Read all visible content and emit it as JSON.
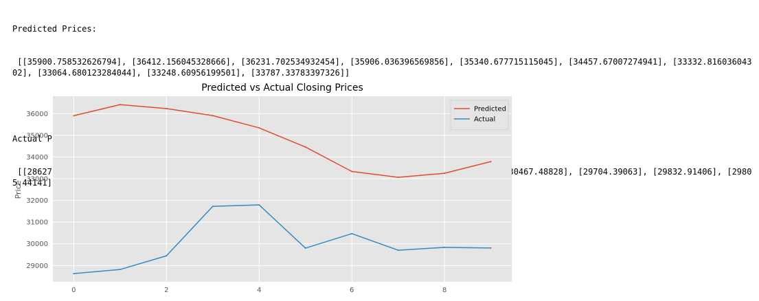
{
  "output": {
    "predicted_label": "Predicted Prices:",
    "predicted_values": " [[35900.758532626794], [36412.156045328666], [36231.702534932454], [35906.036396569856], [35340.677715115045], [34457.67007274941], [33332.81603604302], [33064.680123284044], [33248.60956199501], [33787.33783397326]]",
    "actual_label": "Actual Prices:",
    "actual_values": " [[28627.57422], [28814.90039], [29445.95703], [31726.39063], [31792.31055], [29799.080080000003], [30467.48828], [29704.39063], [29832.91406], [29805.44141]]"
  },
  "chart_data": {
    "type": "line",
    "title": "Predicted vs Actual Closing Prices",
    "xlabel": "",
    "ylabel": "Price",
    "x": [
      0,
      1,
      2,
      3,
      4,
      5,
      6,
      7,
      8,
      9
    ],
    "xticks": [
      "0",
      "2",
      "4",
      "6",
      "8"
    ],
    "yticks": [
      "29000",
      "30000",
      "31000",
      "32000",
      "33000",
      "34000",
      "35000",
      "36000"
    ],
    "xlim": [
      -0.45,
      9.45
    ],
    "ylim": [
      28250,
      36800
    ],
    "grid": true,
    "legend_position": "top-right",
    "series": [
      {
        "name": "Predicted",
        "color": "#E24A33",
        "values": [
          35900.758532626794,
          36412.156045328666,
          36231.702534932454,
          35906.036396569856,
          35340.677715115045,
          34457.67007274941,
          33332.81603604302,
          33064.680123284044,
          33248.60956199501,
          33787.33783397326
        ]
      },
      {
        "name": "Actual",
        "color": "#348ABD",
        "values": [
          28627.57422,
          28814.90039,
          29445.95703,
          31726.39063,
          31792.31055,
          29799.080080000003,
          30467.48828,
          29704.39063,
          29832.91406,
          29805.44141
        ]
      }
    ]
  }
}
